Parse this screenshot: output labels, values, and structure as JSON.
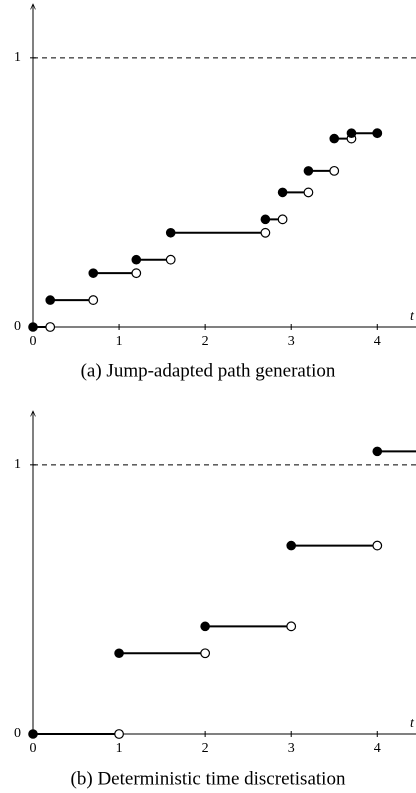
{
  "chart_data": [
    {
      "type": "step",
      "caption": "(a) Jump-adapted path generation",
      "x_label": "t",
      "x": [
        0,
        0.2,
        0.7,
        1.2,
        1.6,
        2.7,
        2.9,
        3.2,
        3.5,
        3.7
      ],
      "x_end": [
        0.2,
        0.7,
        1.2,
        1.6,
        2.7,
        2.9,
        3.2,
        3.5,
        3.7,
        4
      ],
      "values": [
        0,
        0.1,
        0.2,
        0.25,
        0.35,
        0.4,
        0.5,
        0.58,
        0.7,
        0.72
      ],
      "end_marker": [
        "open",
        "open",
        "open",
        "open",
        "open",
        "open",
        "open",
        "open",
        "open",
        "filled"
      ],
      "color": "#000000",
      "xlim": [
        0,
        4.45
      ],
      "ylim": [
        0,
        1.2
      ],
      "xticks": [
        0,
        1,
        2,
        3,
        4
      ],
      "yticks": [
        0,
        1
      ],
      "hline": 1
    },
    {
      "type": "step",
      "caption": "(b) Deterministic time discretisation",
      "x_label": "t",
      "x": [
        0,
        1,
        2,
        3,
        4
      ],
      "x_end": [
        1,
        2,
        3,
        4,
        null
      ],
      "values": [
        0,
        0.3,
        0.4,
        0.7,
        1.05
      ],
      "end_marker": [
        "open",
        "open",
        "open",
        "open",
        null
      ],
      "color": "#000000",
      "xlim": [
        0,
        4.45
      ],
      "ylim": [
        0,
        1.2
      ],
      "xticks": [
        0,
        1,
        2,
        3,
        4
      ],
      "yticks": [
        0,
        1
      ],
      "hline": 1
    }
  ]
}
